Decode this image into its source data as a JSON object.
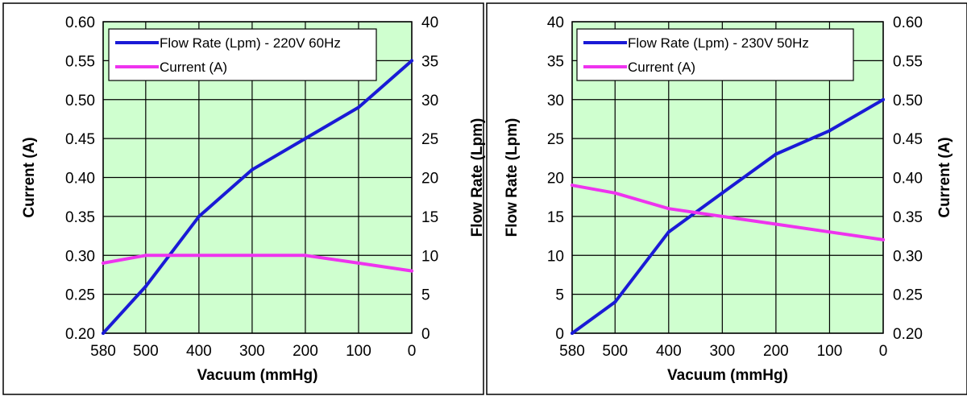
{
  "colors": {
    "flow": "#1a1ad6",
    "current": "#ee33ee",
    "plot_bg": "#cfffcf"
  },
  "chart_data": [
    {
      "type": "line",
      "x": [
        580,
        500,
        400,
        300,
        200,
        100,
        0
      ],
      "xticks": [
        "580",
        "500",
        "400",
        "300",
        "200",
        "100",
        "0"
      ],
      "xlabel": "Vacuum (mmHg)",
      "xlim": [
        580,
        0
      ],
      "y_left": {
        "label": "Current (A)",
        "ticks": [
          "0.20",
          "0.25",
          "0.30",
          "0.35",
          "0.40",
          "0.45",
          "0.50",
          "0.55",
          "0.60"
        ],
        "lim": [
          0.2,
          0.6
        ]
      },
      "y_right": {
        "label": "Flow Rate (Lpm)",
        "ticks": [
          "0",
          "5",
          "10",
          "15",
          "20",
          "25",
          "30",
          "35",
          "40"
        ],
        "lim": [
          0,
          40
        ]
      },
      "grid": true,
      "legend_position": "top-left",
      "series": [
        {
          "name": "Flow Rate (Lpm) - 220V 60Hz",
          "axis": "right",
          "color": "#1a1ad6",
          "values": [
            0,
            6,
            15,
            21,
            25,
            29,
            35
          ]
        },
        {
          "name": "Current (A)",
          "axis": "left",
          "color": "#ee33ee",
          "values": [
            0.29,
            0.3,
            0.3,
            0.3,
            0.3,
            0.29,
            0.28
          ]
        }
      ]
    },
    {
      "type": "line",
      "x": [
        580,
        500,
        400,
        300,
        200,
        100,
        0
      ],
      "xticks": [
        "580",
        "500",
        "400",
        "300",
        "200",
        "100",
        "0"
      ],
      "xlabel": "Vacuum (mmHg)",
      "xlim": [
        580,
        0
      ],
      "y_left": {
        "label": "Flow Rate (Lpm)",
        "ticks": [
          "0",
          "5",
          "10",
          "15",
          "20",
          "25",
          "30",
          "35",
          "40"
        ],
        "lim": [
          0,
          40
        ]
      },
      "y_right": {
        "label": "Current (A)",
        "ticks": [
          "0.20",
          "0.25",
          "0.30",
          "0.35",
          "0.40",
          "0.45",
          "0.50",
          "0.55",
          "0.60"
        ],
        "lim": [
          0.2,
          0.6
        ]
      },
      "grid": true,
      "legend_position": "top-left",
      "series": [
        {
          "name": "Flow Rate (Lpm) - 230V 50Hz",
          "axis": "left",
          "color": "#1a1ad6",
          "values": [
            0,
            4,
            13,
            18,
            23,
            26,
            30
          ]
        },
        {
          "name": "Current (A)",
          "axis": "right",
          "color": "#ee33ee",
          "values": [
            0.39,
            0.38,
            0.36,
            0.35,
            0.34,
            0.33,
            0.32
          ]
        }
      ]
    }
  ]
}
